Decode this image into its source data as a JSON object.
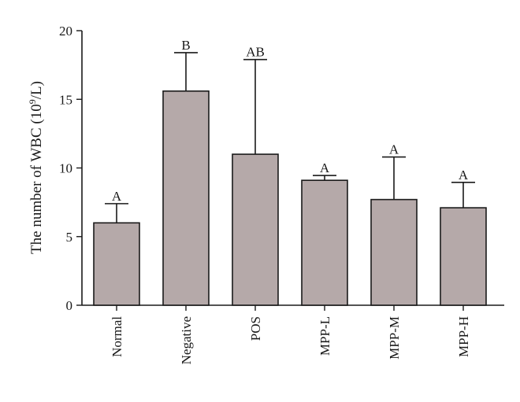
{
  "chart_data": {
    "type": "bar",
    "ylabel_main": "The number of WBC (10",
    "ylabel_sup": "9",
    "ylabel_tail": "/L)",
    "xlabel": "",
    "ylim": [
      0,
      20
    ],
    "yticks": [
      0,
      5,
      10,
      15,
      20
    ],
    "categories": [
      "Normal",
      "Negative",
      "POS",
      "MPP-L",
      "MPP-M",
      "MPP-H"
    ],
    "values": [
      6.0,
      15.6,
      11.0,
      9.1,
      7.7,
      7.1
    ],
    "errors": [
      1.4,
      2.8,
      6.9,
      0.35,
      3.1,
      1.85
    ],
    "annotations": [
      "A",
      "B",
      "AB",
      "A",
      "A",
      "A"
    ],
    "bar_color": "#b5a9a9"
  }
}
